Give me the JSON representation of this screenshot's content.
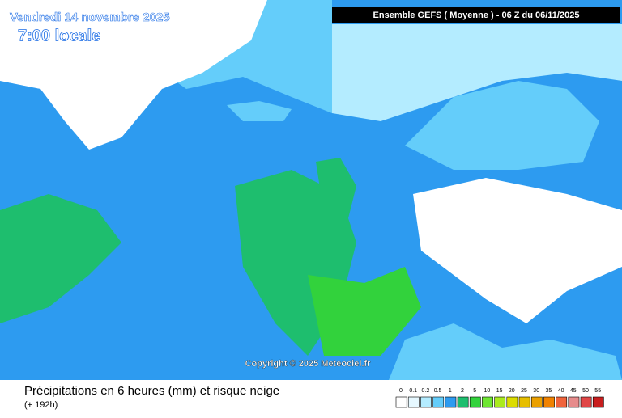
{
  "header": {
    "date": "Vendredi 14 novembre 2025",
    "time": "7:00 locale",
    "run": "Ensemble GEFS  ( Moyenne )  -  06 Z du 06/11/2025"
  },
  "copyright": "Copyright © 2025 Meteociel.fr",
  "footer": {
    "title": "Précipitations en 6 heures (mm) et risque neige",
    "lead": "(+ 192h)"
  },
  "legend": [
    {
      "label": "0",
      "color": "#ffffff"
    },
    {
      "label": "0.1",
      "color": "#e6f8ff"
    },
    {
      "label": "0.2",
      "color": "#b4ecff"
    },
    {
      "label": "0.5",
      "color": "#64cdfa"
    },
    {
      "label": "1",
      "color": "#2d9bf0"
    },
    {
      "label": "2",
      "color": "#1ebe6e"
    },
    {
      "label": "5",
      "color": "#32d23c"
    },
    {
      "label": "10",
      "color": "#6ee632"
    },
    {
      "label": "15",
      "color": "#aaeb1e"
    },
    {
      "label": "20",
      "color": "#dcdc00"
    },
    {
      "label": "25",
      "color": "#e6be00"
    },
    {
      "label": "30",
      "color": "#eba000"
    },
    {
      "label": "35",
      "color": "#f08200"
    },
    {
      "label": "40",
      "color": "#f0643c"
    },
    {
      "label": "45",
      "color": "#e68c8c"
    },
    {
      "label": "50",
      "color": "#e04646"
    },
    {
      "label": "55",
      "color": "#c81e1e"
    }
  ]
}
